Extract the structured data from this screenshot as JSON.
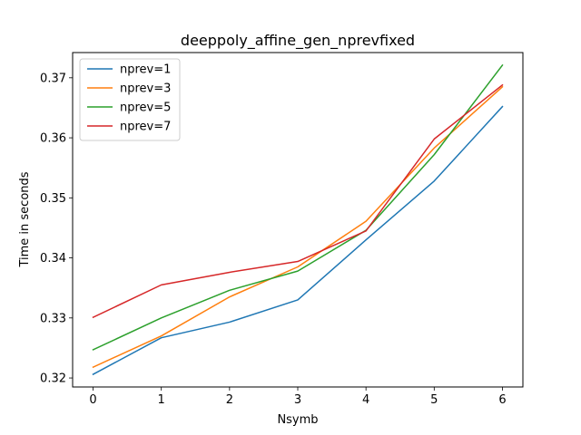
{
  "chart_data": {
    "type": "line",
    "title": "deeppoly_affine_gen_nprevfixed",
    "xlabel": "Nsymb",
    "ylabel": "Time in seconds",
    "x": [
      0,
      1,
      2,
      3,
      4,
      5,
      6
    ],
    "xticks": [
      "0",
      "1",
      "2",
      "3",
      "4",
      "5",
      "6"
    ],
    "yticks": [
      "0.32",
      "0.33",
      "0.34",
      "0.35",
      "0.36",
      "0.37"
    ],
    "xlim": [
      -0.3,
      6.3
    ],
    "ylim": [
      0.3185,
      0.3742
    ],
    "grid": false,
    "legend_position": "top-left",
    "series": [
      {
        "name": "nprev=1",
        "color": "#1f77b4",
        "values": [
          0.3206,
          0.3267,
          0.3293,
          0.333,
          0.343,
          0.3528,
          0.3652
        ]
      },
      {
        "name": "nprev=3",
        "color": "#ff7f0e",
        "values": [
          0.3218,
          0.327,
          0.3335,
          0.3385,
          0.3461,
          0.3583,
          0.3685
        ]
      },
      {
        "name": "nprev=5",
        "color": "#2ca02c",
        "values": [
          0.3247,
          0.33,
          0.3346,
          0.3378,
          0.3446,
          0.3572,
          0.3721
        ]
      },
      {
        "name": "nprev=7",
        "color": "#d62728",
        "values": [
          0.3301,
          0.3355,
          0.3376,
          0.3394,
          0.3445,
          0.3598,
          0.3688
        ]
      }
    ]
  }
}
